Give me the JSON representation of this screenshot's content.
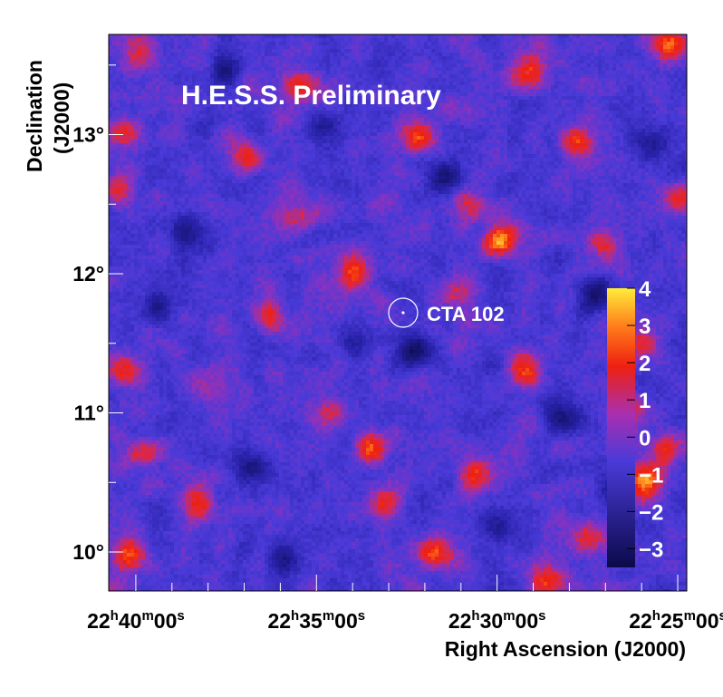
{
  "chart_data": {
    "type": "heatmap",
    "title": "H.E.S.S. Preliminary",
    "xlabel": "Right Ascension (J2000)",
    "ylabel_line1": "Declination",
    "ylabel_line2": "(J2000)",
    "x_ticks": [
      {
        "label": {
          "h": "22",
          "m": "40",
          "s": "00"
        },
        "ra_min": 40
      },
      {
        "label": {
          "h": "22",
          "m": "35",
          "s": "00"
        },
        "ra_min": 35
      },
      {
        "label": {
          "h": "22",
          "m": "30",
          "s": "00"
        },
        "ra_min": 30
      },
      {
        "label": {
          "h": "22",
          "m": "25",
          "s": "00"
        },
        "ra_min": 25
      }
    ],
    "x_unit_suffix": {
      "h": "h",
      "m": "m",
      "s": "s"
    },
    "xlim_ra_min": [
      40.75,
      24.75
    ],
    "y_ticks": [
      {
        "label": "13°",
        "dec": 13
      },
      {
        "label": "12°",
        "dec": 12
      },
      {
        "label": "11°",
        "dec": 11
      },
      {
        "label": "10°",
        "dec": 10
      }
    ],
    "ylim_dec": [
      9.72,
      13.72
    ],
    "source": {
      "name": "CTA 102",
      "ra_min": 32.6,
      "dec": 11.72
    },
    "colorbar": {
      "range": [
        -3.5,
        4.0
      ],
      "ticks": [
        "4",
        "3",
        "2",
        "1",
        "0",
        "−1",
        "−2",
        "−3"
      ],
      "tick_values": [
        4,
        3,
        2,
        1,
        0,
        -1,
        -2,
        -3
      ]
    },
    "colors": {
      "low": "#0b0a4a",
      "mid": "#4a3ad8",
      "midhigh": "#a92fb0",
      "high": "#ee2010",
      "peak": "#ffec3a",
      "title_text": "#ffffff",
      "source_marker": "#ffffff"
    },
    "hotspots": [
      {
        "ra": 29.9,
        "dec": 12.25,
        "v": 3.2
      },
      {
        "ra": 34.0,
        "dec": 12.0,
        "v": 2.6
      },
      {
        "ra": 36.3,
        "dec": 11.7,
        "v": 2.0
      },
      {
        "ra": 25.9,
        "dec": 10.5,
        "v": 3.4
      },
      {
        "ra": 33.5,
        "dec": 10.75,
        "v": 2.7
      },
      {
        "ra": 38.2,
        "dec": 10.35,
        "v": 2.4
      },
      {
        "ra": 30.6,
        "dec": 10.55,
        "v": 2.3
      },
      {
        "ra": 33.1,
        "dec": 10.35,
        "v": 2.2
      },
      {
        "ra": 31.7,
        "dec": 10.0,
        "v": 2.6
      },
      {
        "ra": 28.6,
        "dec": 9.78,
        "v": 2.5
      },
      {
        "ra": 25.2,
        "dec": 13.65,
        "v": 3.4
      },
      {
        "ra": 29.1,
        "dec": 13.45,
        "v": 2.5
      },
      {
        "ra": 32.2,
        "dec": 13.0,
        "v": 2.3
      },
      {
        "ra": 27.8,
        "dec": 12.95,
        "v": 2.2
      },
      {
        "ra": 36.9,
        "dec": 12.85,
        "v": 2.0
      },
      {
        "ra": 35.4,
        "dec": 13.35,
        "v": 1.9
      },
      {
        "ra": 40.5,
        "dec": 12.6,
        "v": 2.2
      },
      {
        "ra": 40.3,
        "dec": 13.0,
        "v": 1.9
      },
      {
        "ra": 24.9,
        "dec": 12.55,
        "v": 2.4
      },
      {
        "ra": 29.2,
        "dec": 11.3,
        "v": 2.3
      },
      {
        "ra": 26.0,
        "dec": 11.5,
        "v": 1.8
      },
      {
        "ra": 34.6,
        "dec": 11.0,
        "v": 2.2
      },
      {
        "ra": 40.2,
        "dec": 11.3,
        "v": 2.0
      },
      {
        "ra": 40.2,
        "dec": 10.0,
        "v": 2.3
      },
      {
        "ra": 25.3,
        "dec": 10.75,
        "v": 2.0
      },
      {
        "ra": 27.4,
        "dec": 10.1,
        "v": 1.7
      },
      {
        "ra": 39.8,
        "dec": 10.7,
        "v": 1.8
      },
      {
        "ra": 30.7,
        "dec": 12.5,
        "v": 1.7
      },
      {
        "ra": 27.0,
        "dec": 12.2,
        "v": 1.8
      },
      {
        "ra": 39.8,
        "dec": 13.6,
        "v": 1.7
      },
      {
        "ra": 31.1,
        "dec": 11.85,
        "v": 1.5
      },
      {
        "ra": 35.5,
        "dec": 12.4,
        "v": 1.6
      },
      {
        "ra": 37.9,
        "dec": 11.2,
        "v": 1.5
      },
      {
        "ra": 26.4,
        "dec": 11.0,
        "v": 1.6
      }
    ],
    "coldspots": [
      {
        "ra": 32.3,
        "dec": 11.45,
        "v": -2.6
      },
      {
        "ra": 36.8,
        "dec": 10.6,
        "v": -2.3
      },
      {
        "ra": 31.4,
        "dec": 12.7,
        "v": -2.2
      },
      {
        "ra": 38.6,
        "dec": 12.3,
        "v": -2.2
      },
      {
        "ra": 27.2,
        "dec": 11.85,
        "v": -2.4
      },
      {
        "ra": 28.2,
        "dec": 10.95,
        "v": -2.1
      },
      {
        "ra": 34.8,
        "dec": 13.05,
        "v": -1.9
      },
      {
        "ra": 39.4,
        "dec": 11.75,
        "v": -1.9
      },
      {
        "ra": 29.9,
        "dec": 10.2,
        "v": -2.0
      },
      {
        "ra": 35.9,
        "dec": 9.95,
        "v": -1.9
      },
      {
        "ra": 25.7,
        "dec": 12.9,
        "v": -1.8
      },
      {
        "ra": 33.9,
        "dec": 11.5,
        "v": -1.6
      },
      {
        "ra": 37.6,
        "dec": 13.45,
        "v": -1.8
      },
      {
        "ra": 26.9,
        "dec": 10.45,
        "v": -1.6
      }
    ]
  }
}
